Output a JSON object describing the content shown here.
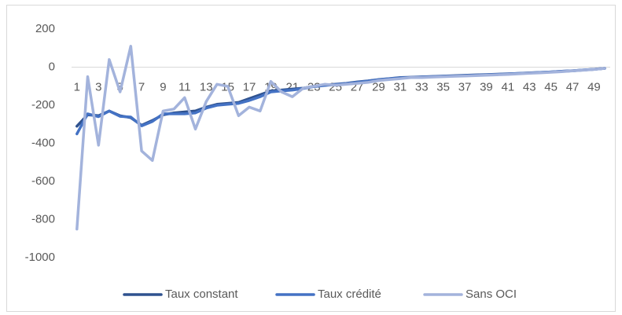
{
  "chart_data": {
    "type": "line",
    "categories": [
      1,
      null,
      3,
      null,
      5,
      null,
      7,
      null,
      9,
      null,
      11,
      null,
      13,
      null,
      15,
      null,
      17,
      null,
      19,
      null,
      21,
      null,
      23,
      null,
      25,
      null,
      27,
      null,
      29,
      null,
      31,
      null,
      33,
      null,
      35,
      null,
      37,
      null,
      39,
      null,
      41,
      null,
      43,
      null,
      45,
      null,
      47,
      null,
      49,
      null
    ],
    "series": [
      {
        "name": "Taux constant",
        "color": "#2f528f",
        "values": [
          -310,
          -250,
          -255,
          -230,
          -255,
          -265,
          -305,
          -280,
          -250,
          -240,
          -235,
          -230,
          -210,
          -195,
          -190,
          -185,
          -165,
          -145,
          -125,
          -120,
          -115,
          -110,
          -100,
          -95,
          -90,
          -85,
          -78,
          -72,
          -65,
          -60,
          -55,
          -53,
          -51,
          -49,
          -47,
          -45,
          -43,
          -41,
          -39,
          -37,
          -35,
          -33,
          -30,
          -28,
          -25,
          -22,
          -19,
          -15,
          -11,
          -6
        ]
      },
      {
        "name": "Taux crédité",
        "color": "#4472c4",
        "values": [
          -350,
          -245,
          -260,
          -230,
          -258,
          -262,
          -308,
          -285,
          -245,
          -245,
          -245,
          -240,
          -215,
          -200,
          -195,
          -190,
          -175,
          -155,
          -130,
          -125,
          -120,
          -112,
          -102,
          -96,
          -91,
          -86,
          -80,
          -73,
          -66,
          -61,
          -56,
          -54,
          -52,
          -50,
          -48,
          -46,
          -44,
          -42,
          -40,
          -38,
          -36,
          -33,
          -31,
          -28,
          -25,
          -22,
          -19,
          -15,
          -11,
          -6
        ]
      },
      {
        "name": "Sans OCI",
        "color": "#a3b3dc",
        "values": [
          -850,
          -50,
          -410,
          40,
          -130,
          110,
          -440,
          -490,
          -230,
          -220,
          -160,
          -325,
          -180,
          -90,
          -100,
          -255,
          -210,
          -230,
          -75,
          -130,
          -155,
          -110,
          -100,
          -90,
          -95,
          -90,
          -85,
          -80,
          -70,
          -65,
          -60,
          -55,
          -55,
          -52,
          -50,
          -48,
          -46,
          -44,
          -42,
          -40,
          -38,
          -35,
          -32,
          -30,
          -27,
          -24,
          -20,
          -16,
          -12,
          -6
        ]
      }
    ],
    "ylim": [
      -1000,
      200
    ],
    "yticks": [
      -1000,
      -800,
      -600,
      -400,
      -200,
      0,
      200
    ],
    "legend": "bottom"
  }
}
